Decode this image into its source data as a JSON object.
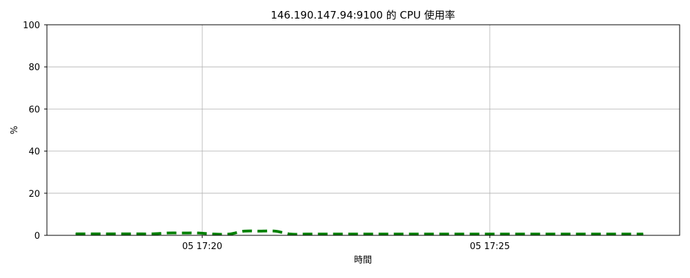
{
  "chart_data": {
    "type": "line",
    "title": "146.190.147.94:9100 的 CPU 使用率",
    "xlabel": "時間",
    "ylabel": "%",
    "ylim": [
      0,
      100
    ],
    "yticks": [
      0,
      20,
      40,
      60,
      80,
      100
    ],
    "xlim": [
      "2024-01-05T17:17:18",
      "2024-01-05T17:28:18"
    ],
    "xticks": [
      {
        "value": "2024-01-05T17:20:00",
        "label": "05 17:20"
      },
      {
        "value": "2024-01-05T17:25:00",
        "label": "05 17:25"
      }
    ],
    "grid": true,
    "legend": "none",
    "series": [
      {
        "color": "#008000",
        "line_style": "dashed",
        "x": [
          "2024-01-05T17:17:48",
          "2024-01-05T17:18:04",
          "2024-01-05T17:18:20",
          "2024-01-05T17:18:36",
          "2024-01-05T17:18:52",
          "2024-01-05T17:19:08",
          "2024-01-05T17:19:24",
          "2024-01-05T17:19:40",
          "2024-01-05T17:19:56",
          "2024-01-05T17:20:12",
          "2024-01-05T17:20:28",
          "2024-01-05T17:20:44",
          "2024-01-05T17:21:00",
          "2024-01-05T17:21:16",
          "2024-01-05T17:21:32",
          "2024-01-05T17:21:48",
          "2024-01-05T17:22:04",
          "2024-01-05T17:22:20",
          "2024-01-05T17:22:36",
          "2024-01-05T17:22:52",
          "2024-01-05T17:23:08",
          "2024-01-05T17:23:24",
          "2024-01-05T17:23:40",
          "2024-01-05T17:23:56",
          "2024-01-05T17:24:12",
          "2024-01-05T17:24:28",
          "2024-01-05T17:24:44",
          "2024-01-05T17:25:00",
          "2024-01-05T17:25:16",
          "2024-01-05T17:25:32",
          "2024-01-05T17:25:48",
          "2024-01-05T17:26:04",
          "2024-01-05T17:26:20",
          "2024-01-05T17:26:36",
          "2024-01-05T17:26:52",
          "2024-01-05T17:27:08",
          "2024-01-05T17:27:24",
          "2024-01-05T17:27:40"
        ],
        "values": [
          0.7,
          0.7,
          0.7,
          0.7,
          0.7,
          0.7,
          1.1,
          1.1,
          1.1,
          0.6,
          0.6,
          2.0,
          2.0,
          2.0,
          0.6,
          0.6,
          0.6,
          0.6,
          0.6,
          0.6,
          0.6,
          0.6,
          0.6,
          0.6,
          0.6,
          0.6,
          0.6,
          0.6,
          0.6,
          0.6,
          0.6,
          0.6,
          0.6,
          0.6,
          0.6,
          0.6,
          0.6,
          0.6
        ]
      }
    ]
  }
}
